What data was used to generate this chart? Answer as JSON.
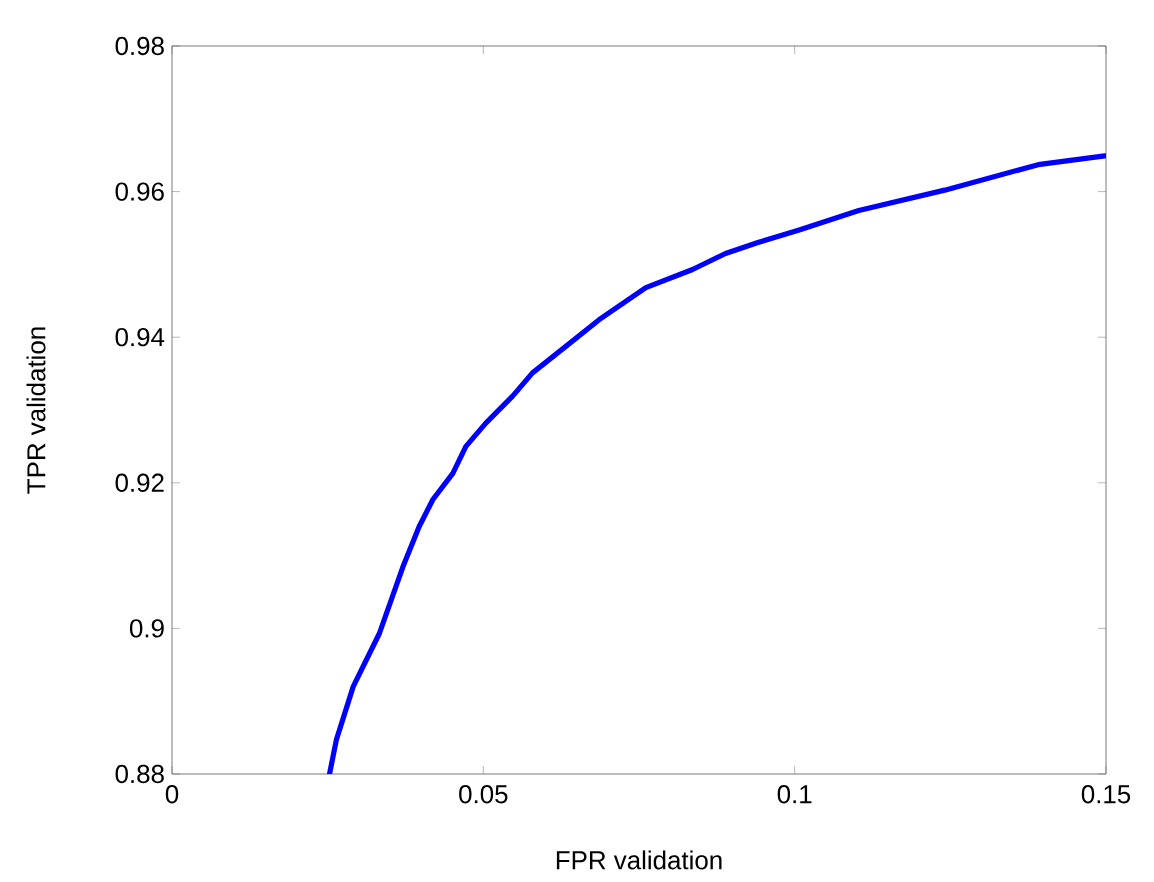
{
  "chart_data": {
    "type": "line",
    "xlabel": "FPR validation",
    "ylabel": "TPR validation",
    "xlim": [
      0,
      0.15
    ],
    "ylim": [
      0.88,
      0.98
    ],
    "xticks": [
      0,
      0.05,
      0.1,
      0.15
    ],
    "yticks": [
      0.88,
      0.9,
      0.92,
      0.94,
      0.96,
      0.98
    ],
    "grid": false,
    "marker": "none",
    "line_style": "solid",
    "series": [
      {
        "color": "#0000ff",
        "x": [
          0.0253,
          0.0264,
          0.0291,
          0.0333,
          0.0371,
          0.0397,
          0.0419,
          0.0451,
          0.0472,
          0.0504,
          0.0547,
          0.0579,
          0.0632,
          0.0686,
          0.0761,
          0.0836,
          0.0889,
          0.0941,
          0.1006,
          0.1103,
          0.1241,
          0.1391,
          0.1498
        ],
        "values": [
          0.88,
          0.8847,
          0.892,
          0.8993,
          0.9085,
          0.914,
          0.9177,
          0.9213,
          0.925,
          0.9282,
          0.9319,
          0.9351,
          0.9387,
          0.9424,
          0.9468,
          0.9493,
          0.9515,
          0.953,
          0.9547,
          0.9574,
          0.9602,
          0.9637,
          0.9649
        ]
      }
    ]
  }
}
